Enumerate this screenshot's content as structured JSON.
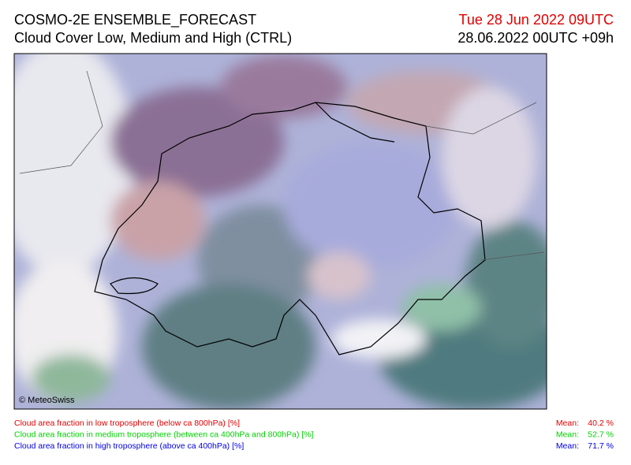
{
  "header": {
    "title": "COSMO-2E ENSEMBLE_FORECAST",
    "subtitle": "Cloud Cover Low, Medium and High (CTRL)",
    "valid_time": "Tue 28 Jun 2022 09UTC",
    "run_time": "28.06.2022 00UTC +09h"
  },
  "map": {
    "copyright": "© MeteoSwiss"
  },
  "legend": {
    "items": [
      {
        "text": "Cloud area fraction in low troposphere (below ca 800hPa) [%]",
        "mean_prefix": "Mean:",
        "mean": "40.2 %",
        "color": "#e00000"
      },
      {
        "text": "Cloud area fraction in medium troposphere (between ca 400hPa and 800hPa) [%]",
        "mean_prefix": "Mean:",
        "mean": "52.7 %",
        "color": "#00d000"
      },
      {
        "text": "Cloud area fraction in high troposphere (above ca 400hPa) [%]",
        "mean_prefix": "Mean:",
        "mean": "71.7 %",
        "color": "#0000e0"
      }
    ]
  }
}
